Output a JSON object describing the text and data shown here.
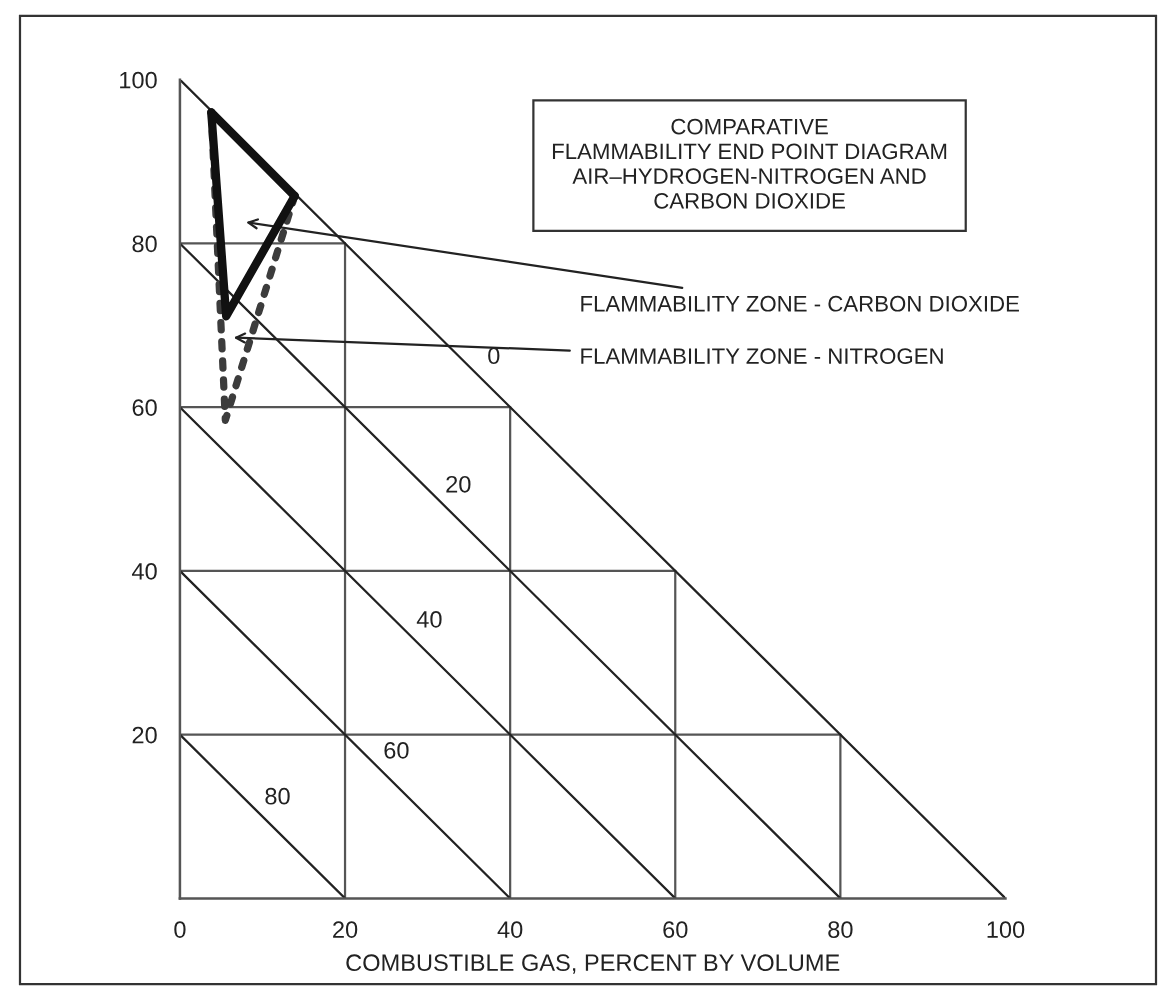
{
  "chart_data": {
    "type": "line",
    "title": "COMPARATIVE\nFLAMMABILITY END POINT DIAGRAM\nAIR–HYDROGEN-NITROGEN AND\nCARBON DIOXIDE",
    "xlabel": "COMBUSTIBLE GAS, PERCENT BY VOLUME",
    "xlim": [
      0,
      100
    ],
    "ylim": [
      0,
      100
    ],
    "xticks": [
      0,
      20,
      40,
      60,
      80,
      100
    ],
    "yticks": [
      20,
      40,
      60,
      80,
      100
    ],
    "marker": "none",
    "series": [
      {
        "color": "#3c3c3c",
        "line_style": "dotted",
        "x": [
          13.9,
          5.5,
          3.8
        ],
        "values": [
          85.8,
          58.4,
          96.0
        ]
      },
      {
        "color": "#111111",
        "line_style": "solid",
        "x": [
          13.9,
          5.6,
          3.8
        ],
        "values": [
          85.8,
          71.1,
          96.0
        ]
      },
      {
        "color": "#111111",
        "line_style": "solid",
        "x": [
          3.8,
          13.9
        ],
        "values": [
          96.0,
          85.8
        ]
      },
      {
        "color": "#555555",
        "line_style": "solid",
        "x": [
          0,
          80
        ],
        "values": [
          20,
          20
        ]
      },
      {
        "color": "#555555",
        "line_style": "solid",
        "x": [
          0,
          60
        ],
        "values": [
          40,
          40
        ]
      },
      {
        "color": "#555555",
        "line_style": "solid",
        "x": [
          0,
          40
        ],
        "values": [
          60,
          60
        ]
      },
      {
        "color": "#555555",
        "line_style": "solid",
        "x": [
          0,
          20
        ],
        "values": [
          80,
          80
        ]
      },
      {
        "color": "#555555",
        "line_style": "solid",
        "x": [
          20,
          20
        ],
        "values": [
          0,
          80
        ]
      },
      {
        "color": "#555555",
        "line_style": "solid",
        "x": [
          40,
          40
        ],
        "values": [
          0,
          60
        ]
      },
      {
        "color": "#555555",
        "line_style": "solid",
        "x": [
          60,
          60
        ],
        "values": [
          0,
          40
        ]
      },
      {
        "color": "#555555",
        "line_style": "solid",
        "x": [
          80,
          80
        ],
        "values": [
          0,
          20
        ]
      },
      {
        "color": "#222222",
        "line_style": "solid",
        "x": [
          0,
          100
        ],
        "values": [
          100,
          0
        ]
      },
      {
        "color": "#222222",
        "line_style": "solid",
        "x": [
          0,
          80
        ],
        "values": [
          80,
          0
        ]
      },
      {
        "color": "#222222",
        "line_style": "solid",
        "x": [
          0,
          60
        ],
        "values": [
          60,
          0
        ]
      },
      {
        "color": "#222222",
        "line_style": "solid",
        "x": [
          0,
          40
        ],
        "values": [
          40,
          0
        ]
      },
      {
        "color": "#222222",
        "line_style": "solid",
        "x": [
          0,
          20
        ],
        "values": [
          20,
          0
        ]
      }
    ],
    "annotations": [
      "FLAMMABILITY ZONE - CARBON DIOXIDE",
      {
        "text": "FLAMMABILITY ZONE - NITROGEN",
        "x": 6.5,
        "y": 68.5
      },
      {
        "text": "0",
        "x": 36,
        "y": 64
      },
      {
        "text": "20",
        "x": 31.7,
        "y": 48.3
      },
      {
        "text": "40",
        "x": 28.2,
        "y": 31.8
      },
      {
        "text": "60",
        "x": 24.2,
        "y": 15.8
      },
      {
        "text": "80",
        "x": 9.8,
        "y": 10.2
      }
    ]
  }
}
